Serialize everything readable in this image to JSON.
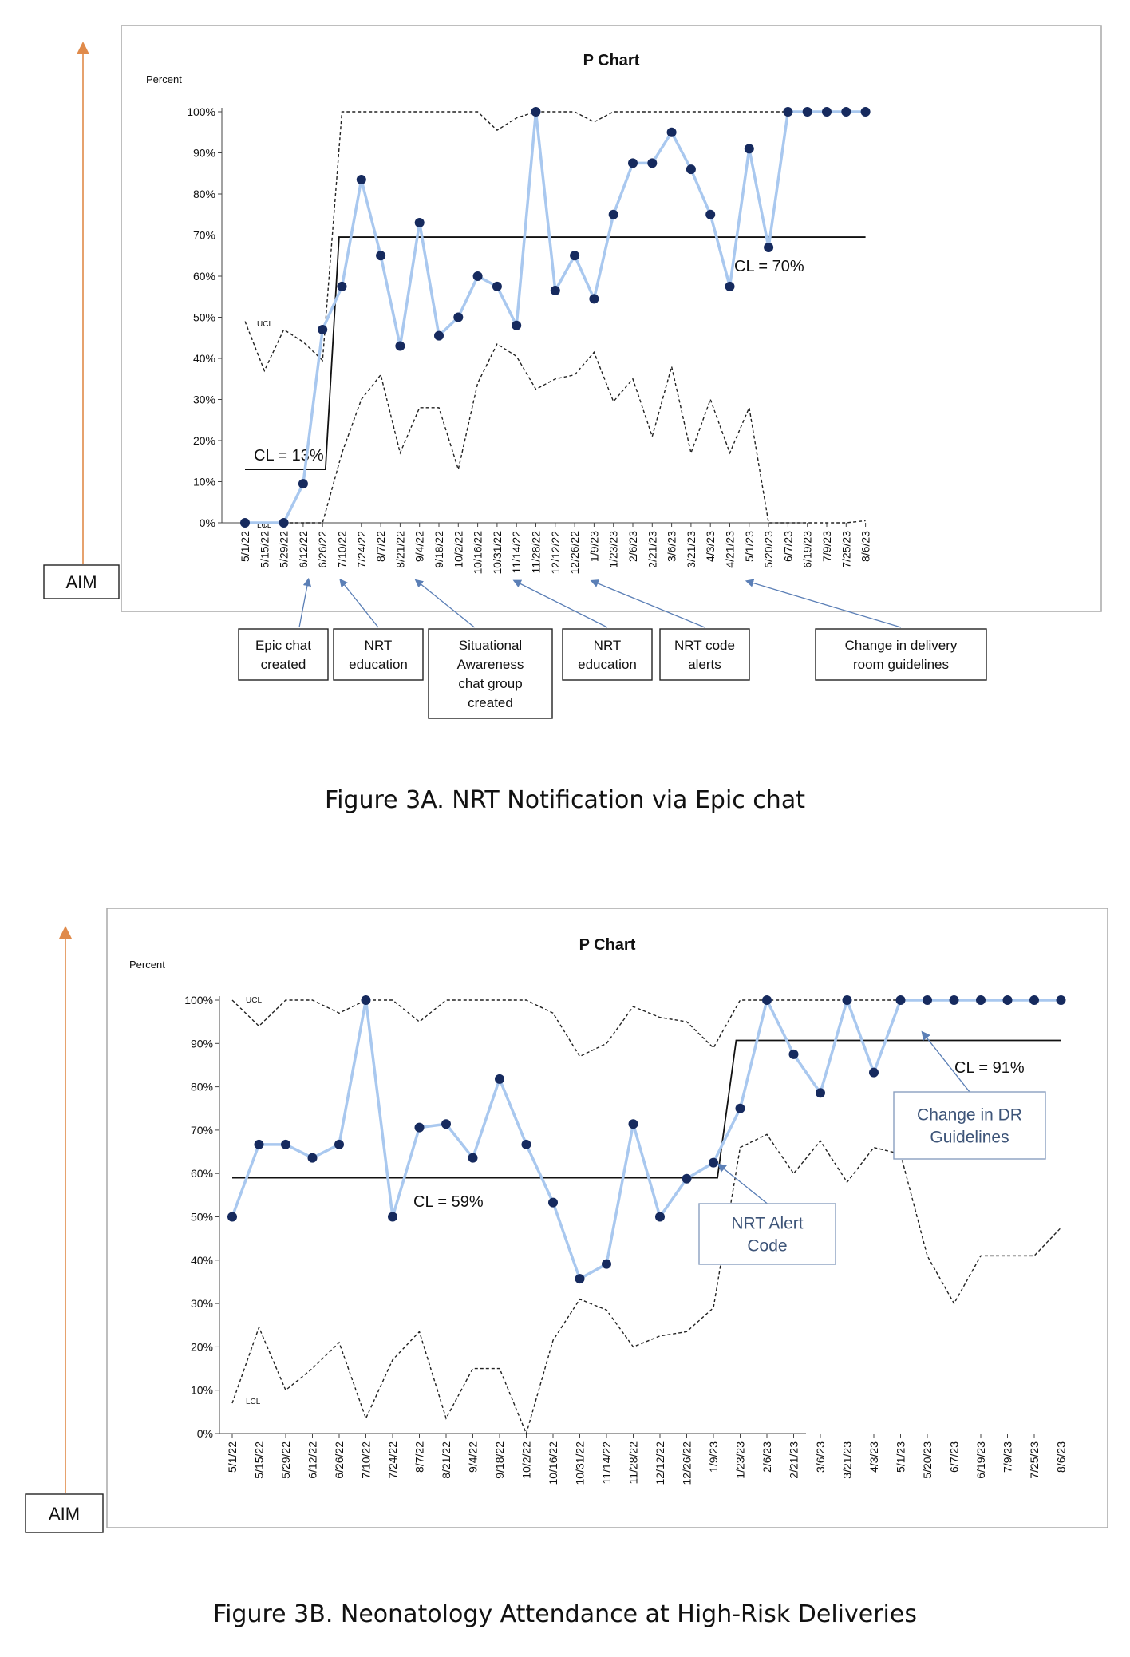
{
  "figures": [
    {
      "caption": "Figure 3A. NRT Notification via Epic chat",
      "aim_label": "AIM",
      "chart_data": {
        "type": "line",
        "title": "P Chart",
        "ylabel": "Percent",
        "ylim": [
          0,
          100
        ],
        "yticks": [
          "0%",
          "10%",
          "20%",
          "30%",
          "40%",
          "50%",
          "60%",
          "70%",
          "80%",
          "90%",
          "100%"
        ],
        "categories": [
          "5/1/22",
          "5/15/22",
          "5/29/22",
          "6/12/22",
          "6/26/22",
          "7/10/22",
          "7/24/22",
          "8/7/22",
          "8/21/22",
          "9/4/22",
          "9/18/22",
          "10/2/22",
          "10/16/22",
          "10/31/22",
          "11/14/22",
          "11/28/22",
          "12/12/22",
          "12/26/22",
          "1/9/23",
          "1/23/23",
          "2/6/23",
          "2/21/23",
          "3/6/23",
          "3/21/23",
          "4/3/23",
          "4/21/23",
          "5/1/23",
          "5/20/23",
          "6/7/23",
          "6/19/23",
          "7/9/23",
          "7/25/23",
          "8/6/23"
        ],
        "series": [
          {
            "values": [
              0,
              null,
              0,
              9.5,
              47,
              57.5,
              83.5,
              65,
              43,
              73,
              45.5,
              50,
              60,
              57.5,
              48,
              100,
              56.5,
              65,
              54.5,
              75,
              87.5,
              87.5,
              95,
              86,
              75,
              57.5,
              91,
              67,
              100,
              100,
              100,
              100,
              100
            ]
          }
        ],
        "ucl_label": "UCL",
        "lcl_label": "LCL",
        "ucl": [
          49,
          37,
          47,
          44,
          39.5,
          100,
          100,
          100,
          100,
          100,
          100,
          100,
          100,
          95.5,
          98.5,
          100,
          100,
          100,
          97.5,
          100,
          100,
          100,
          100,
          100,
          100,
          100,
          100,
          100,
          100,
          100,
          100,
          100,
          100
        ],
        "lcl": [
          0,
          0,
          0,
          0,
          0,
          17,
          30,
          36,
          17,
          28,
          28,
          13,
          34,
          43.5,
          40.5,
          32.5,
          35,
          36,
          41.5,
          29.5,
          35,
          21,
          38,
          17,
          30,
          17,
          28,
          0,
          0,
          0,
          0,
          0,
          0.5
        ],
        "cl_segments": [
          {
            "label": "CL = 13%",
            "value": 13,
            "from": 0,
            "to": 4
          },
          {
            "label": "CL = 70%",
            "value": 69.5,
            "from": 5,
            "to": 32
          }
        ],
        "annotations": [
          {
            "text": [
              "Epic chat",
              "created"
            ],
            "point": 3
          },
          {
            "text": [
              "NRT",
              "education"
            ],
            "point": 5
          },
          {
            "text": [
              "Situational",
              "Awareness",
              "chat group",
              "created"
            ],
            "point": 9
          },
          {
            "text": [
              "NRT",
              "education"
            ],
            "point": 14
          },
          {
            "text": [
              "NRT code",
              "alerts"
            ],
            "point": 18
          },
          {
            "text": [
              "Change in delivery",
              "room guidelines"
            ],
            "point": 26
          }
        ]
      }
    },
    {
      "caption": "Figure 3B. Neonatology Attendance at High-Risk Deliveries",
      "aim_label": "AIM",
      "chart_data": {
        "type": "line",
        "title": "P Chart",
        "ylabel": "Percent",
        "ylim": [
          0,
          100
        ],
        "yticks": [
          "0%",
          "10%",
          "20%",
          "30%",
          "40%",
          "50%",
          "60%",
          "70%",
          "80%",
          "90%",
          "100%"
        ],
        "categories": [
          "5/1/22",
          "5/15/22",
          "5/29/22",
          "6/12/22",
          "6/26/22",
          "7/10/22",
          "7/24/22",
          "8/7/22",
          "8/21/22",
          "9/4/22",
          "9/18/22",
          "10/2/22",
          "10/16/22",
          "10/31/22",
          "11/14/22",
          "11/28/22",
          "12/12/22",
          "12/26/22",
          "1/9/23",
          "1/23/23",
          "2/6/23",
          "2/21/23",
          "3/6/23",
          "3/21/23",
          "4/3/23",
          "5/1/23",
          "5/20/23",
          "6/7/23",
          "6/19/23",
          "7/9/23",
          "7/25/23",
          "8/6/23"
        ],
        "series": [
          {
            "values": [
              50,
              66.7,
              66.7,
              63.6,
              66.7,
              100,
              50,
              70.6,
              71.4,
              63.6,
              81.8,
              66.7,
              53.3,
              35.7,
              39.1,
              71.4,
              50,
              58.8,
              62.5,
              75,
              100,
              87.5,
              78.6,
              100,
              83.3,
              100,
              100,
              100,
              100,
              100,
              100,
              100
            ]
          }
        ],
        "ucl_label": "UCL",
        "lcl_label": "LCL",
        "ucl": [
          100,
          94,
          100,
          100,
          97,
          100,
          100,
          95,
          100,
          100,
          100,
          100,
          97,
          87,
          90,
          98.5,
          96,
          95,
          89,
          100,
          100,
          100,
          100,
          100,
          100,
          100,
          100,
          100,
          100,
          100,
          100,
          100
        ],
        "lcl": [
          7,
          24.5,
          10,
          15,
          21,
          3.5,
          17,
          23.5,
          3.5,
          15,
          15,
          0,
          21.5,
          31,
          28.5,
          20,
          22.5,
          23.5,
          29,
          66,
          69,
          60,
          67.5,
          58,
          66,
          64.5,
          41,
          30,
          41,
          41,
          41,
          47.5
        ],
        "cl_segments": [
          {
            "label": "CL = 59%",
            "value": 59,
            "from": 0,
            "to": 18
          },
          {
            "label": "CL = 91%",
            "value": 90.7,
            "from": 19,
            "to": 31
          }
        ],
        "annotations": [
          {
            "text": [
              "NRT Alert",
              "Code"
            ],
            "point": 18
          },
          {
            "text": [
              "Change in DR",
              "Guidelines"
            ],
            "point": 26
          }
        ]
      }
    }
  ]
}
